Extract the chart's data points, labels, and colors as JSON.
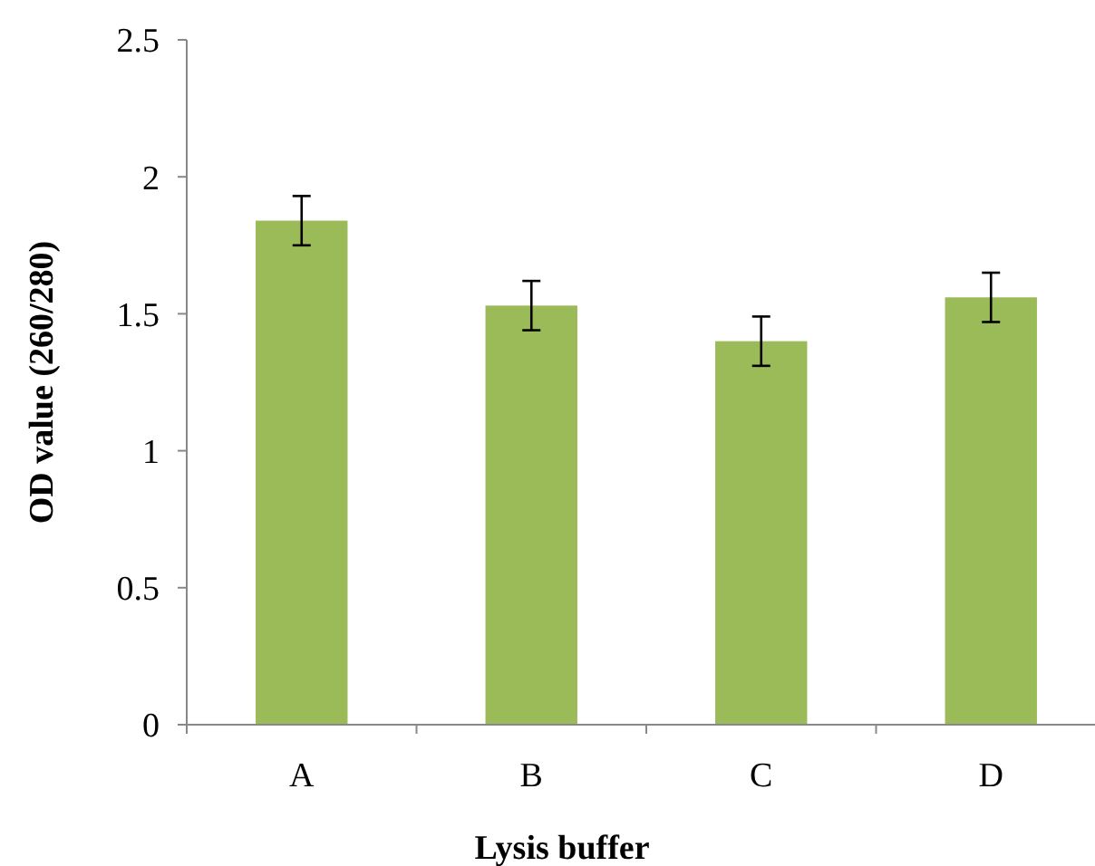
{
  "chart_data": {
    "type": "bar",
    "xlabel": "Lysis buffer",
    "ylabel": "OD value (260/280)",
    "categories": [
      "A",
      "B",
      "C",
      "D"
    ],
    "values": [
      1.84,
      1.53,
      1.4,
      1.56
    ],
    "errors": [
      0.09,
      0.09,
      0.09,
      0.09
    ],
    "color": "#9bbb59",
    "ylim": [
      0,
      2.5
    ],
    "yticks": [
      0,
      0.5,
      1,
      1.5,
      2,
      2.5
    ],
    "grid": false
  }
}
